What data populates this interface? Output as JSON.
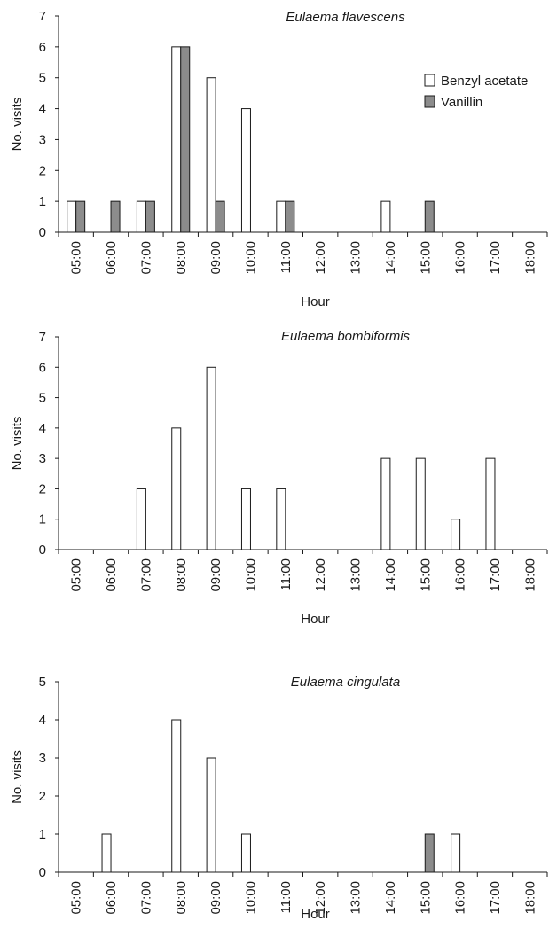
{
  "chart_data": [
    {
      "type": "bar",
      "title": "Eulaema flavescens",
      "xlabel": "Hour",
      "ylabel": "No. visits",
      "ylim": [
        0,
        7
      ],
      "categories": [
        "05:00",
        "06:00",
        "07:00",
        "08:00",
        "09:00",
        "10:00",
        "11:00",
        "12:00",
        "13:00",
        "14:00",
        "15:00",
        "16:00",
        "17:00",
        "18:00"
      ],
      "series": [
        {
          "name": "Benzyl acetate",
          "color": "#ffffff",
          "values": [
            1,
            0,
            1,
            6,
            5,
            4,
            1,
            0,
            0,
            1,
            0,
            0,
            0,
            0
          ]
        },
        {
          "name": "Vanillin",
          "color": "#8c8c8c",
          "values": [
            1,
            1,
            1,
            6,
            1,
            0,
            1,
            0,
            0,
            0,
            1,
            0,
            0,
            0
          ]
        }
      ],
      "legend": "top-right"
    },
    {
      "type": "bar",
      "title": "Eulaema bombiformis",
      "xlabel": "Hour",
      "ylabel": "No. visits",
      "ylim": [
        0,
        7
      ],
      "categories": [
        "05:00",
        "06:00",
        "07:00",
        "08:00",
        "09:00",
        "10:00",
        "11:00",
        "12:00",
        "13:00",
        "14:00",
        "15:00",
        "16:00",
        "17:00",
        "18:00"
      ],
      "series": [
        {
          "color": "#ffffff",
          "values": [
            0,
            0,
            2,
            4,
            6,
            2,
            2,
            0,
            0,
            3,
            3,
            1,
            3,
            0
          ]
        },
        {
          "color": "#8c8c8c",
          "values": [
            0,
            0,
            0,
            0,
            0,
            0,
            0,
            0,
            0,
            0,
            0,
            0,
            0,
            0
          ]
        }
      ]
    },
    {
      "type": "bar",
      "title": "Eulaema cingulata",
      "xlabel": "Hour",
      "ylabel": "No. visits",
      "ylim": [
        0,
        5
      ],
      "categories": [
        "05:00",
        "06:00",
        "07:00",
        "08:00",
        "09:00",
        "10:00",
        "11:00",
        "12:00",
        "13:00",
        "14:00",
        "15:00",
        "16:00",
        "17:00",
        "18:00"
      ],
      "series": [
        {
          "color": "#ffffff",
          "values": [
            0,
            1,
            0,
            4,
            3,
            1,
            0,
            0,
            0,
            0,
            0,
            1,
            0,
            0
          ]
        },
        {
          "color": "#8c8c8c",
          "values": [
            0,
            0,
            0,
            0,
            0,
            0,
            0,
            0,
            0,
            0,
            1,
            0,
            0,
            0
          ]
        }
      ]
    }
  ]
}
